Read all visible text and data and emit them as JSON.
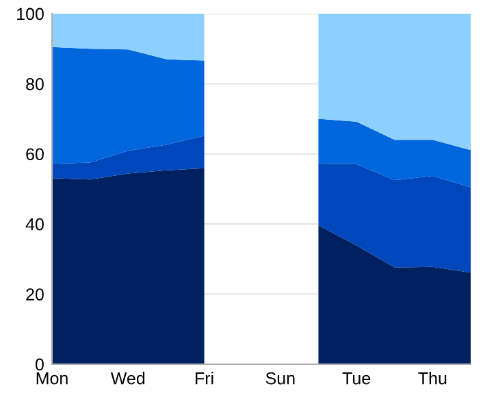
{
  "chart_data": {
    "type": "area",
    "stacked": true,
    "categories": [
      "Mon",
      null,
      "Wed",
      null,
      "Fri",
      null,
      "Sun",
      null,
      "Tue",
      null,
      "Thu",
      null
    ],
    "series": [
      {
        "color": "#00205f",
        "values": [
          53.1,
          52.7,
          54.4,
          55.3,
          55.9,
          null,
          null,
          39.6,
          33.9,
          27.6,
          27.8,
          26.1
        ]
      },
      {
        "color": "#0047bb",
        "values": [
          4.1,
          4.8,
          6.5,
          7.3,
          9.3,
          null,
          null,
          17.6,
          23.2,
          24.9,
          25.9,
          24.4
        ]
      },
      {
        "color": "#0066dd",
        "values": [
          33.3,
          32.5,
          28.9,
          24.4,
          21.4,
          null,
          null,
          12.8,
          12.1,
          11.5,
          10.3,
          10.6
        ]
      },
      {
        "color": "#8dd0ff",
        "values": [
          9.5,
          10.0,
          10.2,
          13.0,
          13.4,
          null,
          null,
          30.0,
          30.8,
          36.0,
          36.0,
          38.9
        ]
      }
    ],
    "ylim": [
      0,
      100
    ],
    "yticks": [
      0,
      20,
      40,
      60,
      80,
      100
    ],
    "grid": "y"
  }
}
